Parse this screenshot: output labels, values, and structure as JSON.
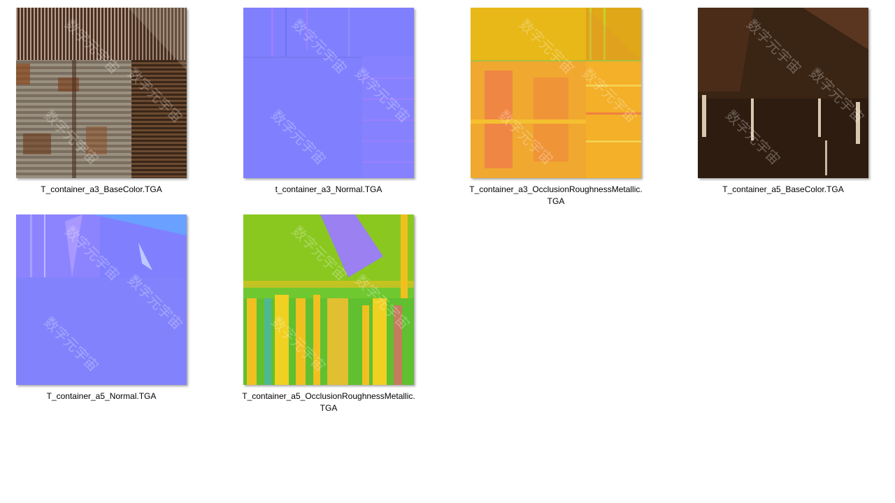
{
  "files": [
    {
      "name": "T_container_a3_BaseColor.TGA"
    },
    {
      "name": "t_container_a3_Normal.TGA"
    },
    {
      "name": "T_container_a3_OcclusionRoughnessMetallic.\nTGA"
    },
    {
      "name": "T_container_a5_BaseColor.TGA"
    },
    {
      "name": "T_container_a5_Normal.TGA"
    },
    {
      "name": "T_container_a5_OcclusionRoughnessMetallic.\nTGA"
    }
  ],
  "watermark": "数字元宇宙",
  "colors": {
    "normal_blue": "#8080ff",
    "rust_brown": "#5a3a22",
    "orm_yellow": "#f0b020",
    "orm_green": "#66cc22"
  }
}
